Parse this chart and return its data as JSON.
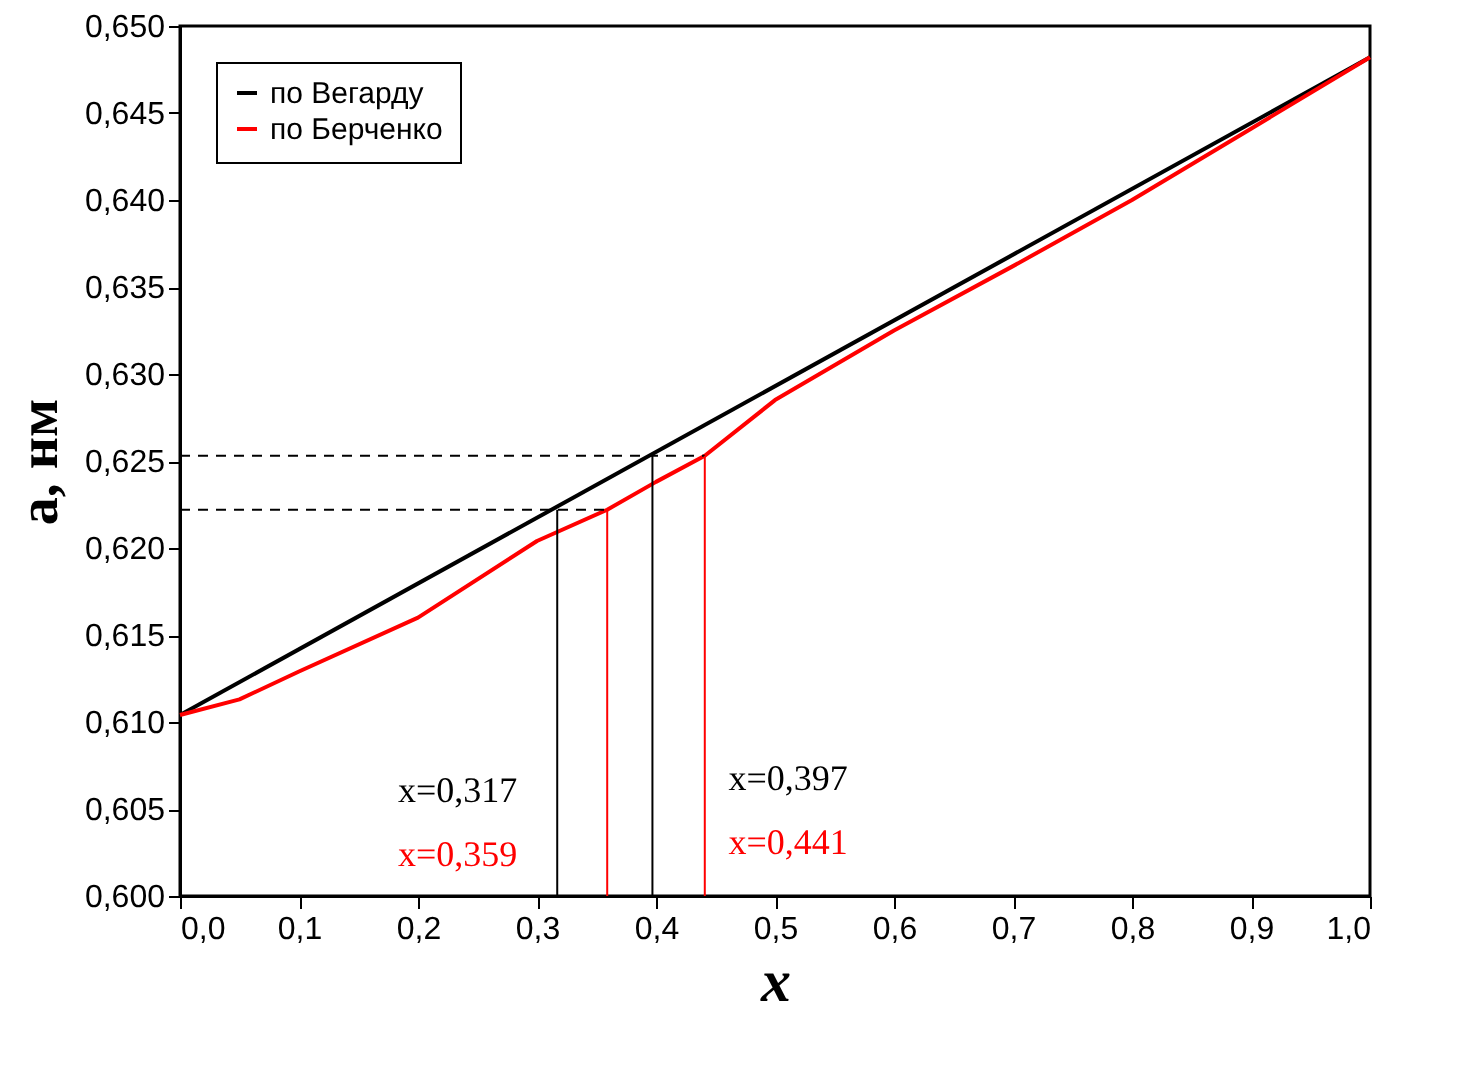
{
  "chart_data": {
    "type": "line",
    "xlabel": "x",
    "ylabel": "a, нм",
    "x": [
      0,
      1
    ],
    "series": [
      {
        "name": "по Вегарду",
        "color": "#000000",
        "values": [
          0.6104,
          0.6482
        ]
      },
      {
        "name": "по Берченко",
        "color": "#ff0000",
        "x": [
          0,
          0.05,
          0.1,
          0.2,
          0.3,
          0.359,
          0.4,
          0.441,
          0.5,
          0.6,
          0.7,
          0.8,
          0.9,
          1.0
        ],
        "values": [
          0.6104,
          0.6113,
          0.6129,
          0.616,
          0.6204,
          0.6222,
          0.6238,
          0.6253,
          0.6285,
          0.6325,
          0.6362,
          0.64,
          0.6441,
          0.6482
        ]
      },
      {
        "color": "#000000",
        "x": [
          0,
          0.359
        ],
        "values": [
          0.6222,
          0.6222
        ],
        "line_style": "dashed"
      },
      {
        "color": "#000000",
        "x": [
          0,
          0.441
        ],
        "values": [
          0.6253,
          0.6253
        ],
        "line_style": "dashed"
      },
      {
        "color": "#000000",
        "x": [
          0.317,
          0.317
        ],
        "values": [
          0.6222,
          0.6
        ]
      },
      {
        "color": "#ff0000",
        "x": [
          0.359,
          0.359
        ],
        "values": [
          0.6222,
          0.6
        ]
      },
      {
        "color": "#000000",
        "x": [
          0.397,
          0.397
        ],
        "values": [
          0.6253,
          0.6
        ]
      },
      {
        "color": "#ff0000",
        "x": [
          0.441,
          0.441
        ],
        "values": [
          0.6253,
          0.6
        ]
      }
    ],
    "annotations": [
      "x=0,317",
      "x=0,359",
      "x=0,397",
      "x=0,441"
    ],
    "xlim": [
      0,
      1
    ],
    "xticks": [
      {
        "value": 0,
        "label": "0,0"
      },
      {
        "value": 0.1,
        "label": "0,1"
      },
      {
        "value": 0.2,
        "label": "0,2"
      },
      {
        "value": 0.3,
        "label": "0,3"
      },
      {
        "value": 0.4,
        "label": "0,4"
      },
      {
        "value": 0.5,
        "label": "0,5"
      },
      {
        "value": 0.6,
        "label": "0,6"
      },
      {
        "value": 0.7,
        "label": "0,7"
      },
      {
        "value": 0.8,
        "label": "0,8"
      },
      {
        "value": 0.9,
        "label": "0,9"
      },
      {
        "value": 1.0,
        "label": "1,0"
      }
    ],
    "ylim": [
      0.6,
      0.65
    ],
    "yticks": [
      {
        "value": 0.6,
        "label": "0,600"
      },
      {
        "value": 0.605,
        "label": "0,605"
      },
      {
        "value": 0.61,
        "label": "0,610"
      },
      {
        "value": 0.615,
        "label": "0,615"
      },
      {
        "value": 0.62,
        "label": "0,620"
      },
      {
        "value": 0.625,
        "label": "0,625"
      },
      {
        "value": 0.63,
        "label": "0,630"
      },
      {
        "value": 0.635,
        "label": "0,635"
      },
      {
        "value": 0.64,
        "label": "0,640"
      },
      {
        "value": 0.645,
        "label": "0,645"
      },
      {
        "value": 0.65,
        "label": "0,650"
      }
    ],
    "grid": false,
    "legend": "top left",
    "marker": "none",
    "line_style": "solid"
  }
}
